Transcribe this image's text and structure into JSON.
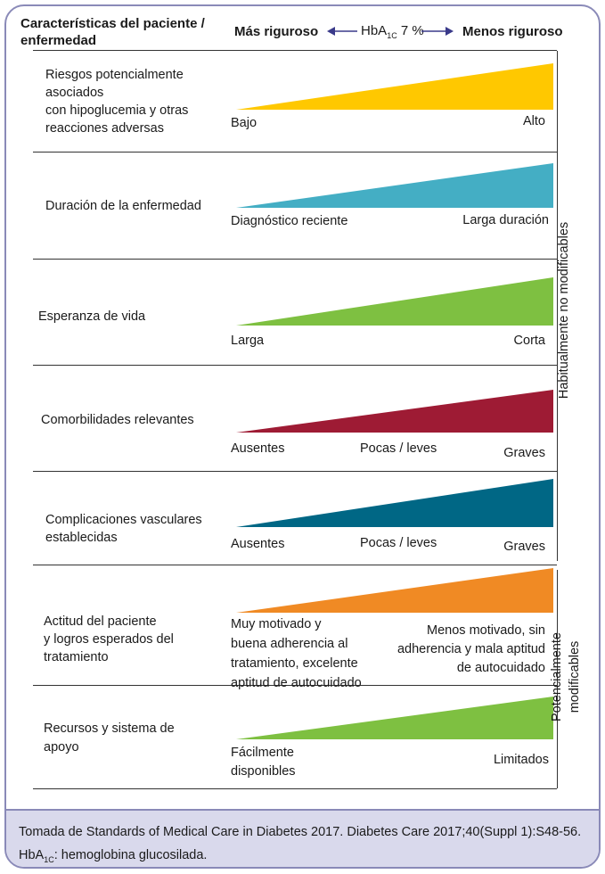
{
  "header": {
    "left_line1": "Características del paciente /",
    "left_line2": "enfermedad",
    "strict": "Más riguroso",
    "loose": "Menos riguroso",
    "hba_prefix": "HbA",
    "hba_sub": "1C",
    "hba_suffix": " 7 %"
  },
  "rows": [
    {
      "label_lines": [
        "Riesgos potencialmente",
        "asociados",
        "con hipoglucemia y otras",
        "reacciones adversas"
      ],
      "color": "#ffc800",
      "start": "Bajo",
      "end": "Alto"
    },
    {
      "label_lines": [
        "Duración de la enfermedad"
      ],
      "color": "#44aec4",
      "start": "Diagnóstico reciente",
      "end": "Larga duración"
    },
    {
      "label_lines": [
        "Esperanza de vida"
      ],
      "color": "#7ec041",
      "start": "Larga",
      "end": "Corta"
    },
    {
      "label_lines": [
        "Comorbilidades relevantes"
      ],
      "color": "#9e1b34",
      "start": "Ausentes",
      "middle": "Pocas / leves",
      "end": "Graves"
    },
    {
      "label_lines": [
        "Complicaciones vasculares",
        "establecidas"
      ],
      "color": "#006785",
      "start": "Ausentes",
      "middle": "Pocas / leves",
      "end": "Graves"
    },
    {
      "label_lines": [
        "Actitud del paciente",
        "y logros esperados del",
        "tratamiento"
      ],
      "color": "#f08a24",
      "start_lines": [
        "Muy motivado y",
        "buena adherencia al",
        "tratamiento, excelente",
        "aptitud de autocuidado"
      ],
      "end_lines": [
        "Menos motivado, sin",
        "adherencia y mala aptitud",
        "de autocuidado"
      ]
    },
    {
      "label_lines": [
        "Recursos y sistema de",
        "apoyo"
      ],
      "color": "#7ec041",
      "start_lines": [
        "Fácilmente",
        "disponibles"
      ],
      "end": "Limitados"
    }
  ],
  "side": {
    "unmodifiable": "Habitualmente no modificables",
    "modifiable_line1": "Potencialmente",
    "modifiable_line2": "modificables"
  },
  "footer": {
    "source": "Tomada de Standards of Medical Care in Diabetes 2017. Diabetes Care 2017;40(Suppl 1):S48-56.",
    "abbr_prefix": "HbA",
    "abbr_sub": "1C",
    "abbr_suffix": ": hemoglobina glucosilada."
  }
}
